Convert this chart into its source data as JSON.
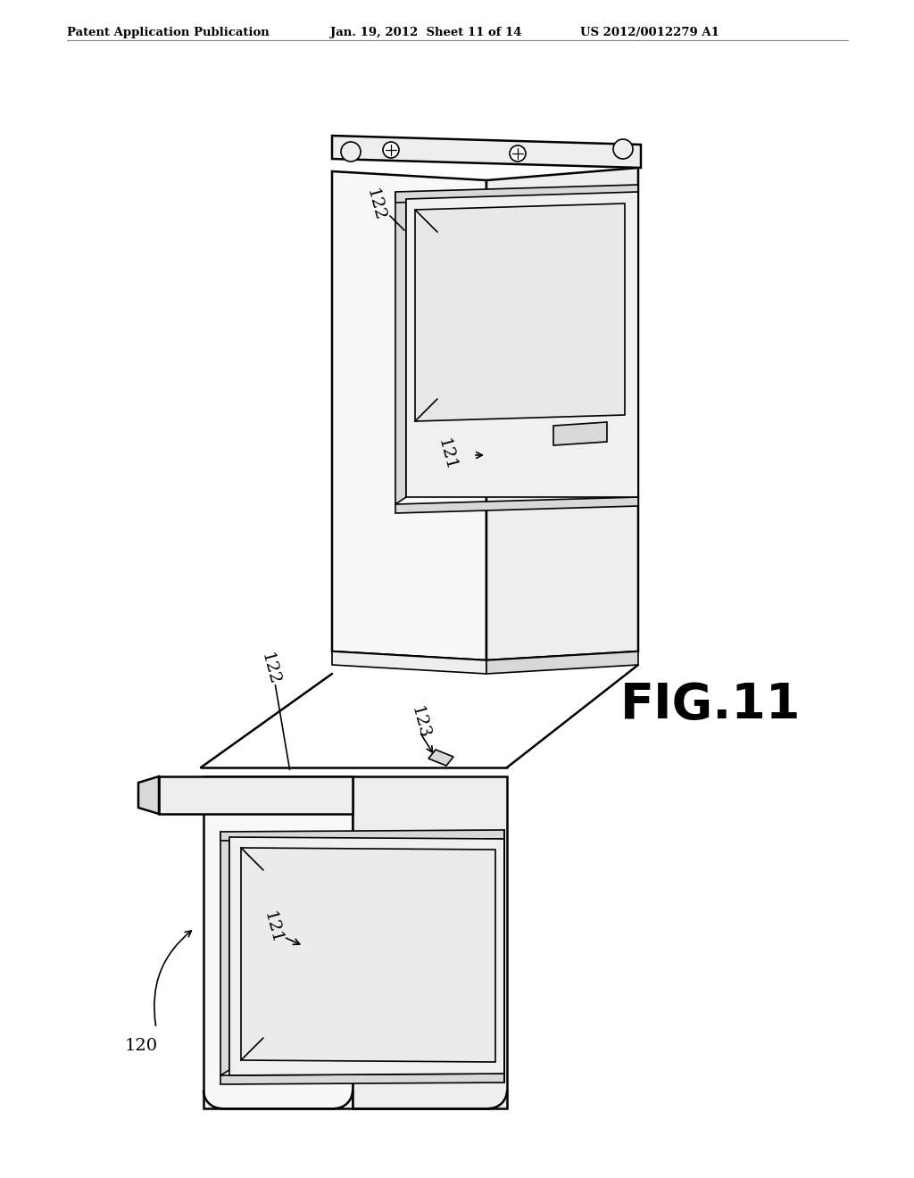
{
  "header_left": "Patent Application Publication",
  "header_mid": "Jan. 19, 2012  Sheet 11 of 14",
  "header_right": "US 2012/0012279 A1",
  "fig_label": "FIG.11",
  "ref_120": "120",
  "ref_121_top": "121",
  "ref_121_bot": "121",
  "ref_122_top": "122",
  "ref_122_bot": "122",
  "ref_123": "123",
  "bg_color": "#ffffff",
  "line_color": "#000000",
  "face_white": "#f8f8f8",
  "face_light": "#eeeeee",
  "face_mid": "#d8d8d8",
  "face_slot": "#c8c8c8"
}
